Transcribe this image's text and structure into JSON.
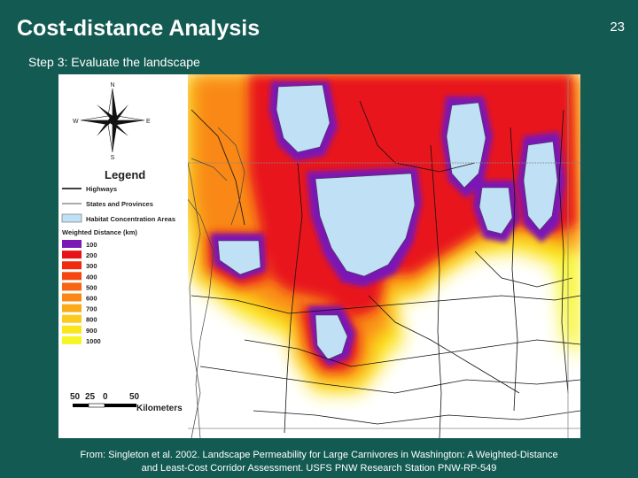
{
  "slide": {
    "title": "Cost-distance Analysis",
    "number": "23",
    "subtitle": "Step 3: Evaluate the landscape",
    "caption_line1": "From: Singleton et al. 2002. Landscape Permeability for Large Carnivores in Washington: A Weighted-Distance",
    "caption_line2": "and Least-Cost Corridor Assessment. USFS PNW Research Station PNW-RP-549"
  },
  "map": {
    "compass": {
      "n": "N",
      "s": "S",
      "e": "E",
      "w": "W"
    },
    "legend": {
      "title": "Legend",
      "items": [
        {
          "label": "Highways",
          "kind": "line",
          "color": "#000000"
        },
        {
          "label": "States and Provinces",
          "kind": "line",
          "color": "#777777"
        },
        {
          "label": "Habitat Concentration Areas",
          "kind": "box",
          "color": "#bfe0f5"
        }
      ],
      "distance_title": "Weighted Distance (km)",
      "distance_classes": [
        {
          "label": "100",
          "color": "#7a19b5"
        },
        {
          "label": "200",
          "color": "#e8131a"
        },
        {
          "label": "300",
          "color": "#f02a0f"
        },
        {
          "label": "400",
          "color": "#f5460f"
        },
        {
          "label": "500",
          "color": "#f76512"
        },
        {
          "label": "600",
          "color": "#f98816"
        },
        {
          "label": "700",
          "color": "#fbab1a"
        },
        {
          "label": "800",
          "color": "#fccb1f"
        },
        {
          "label": "900",
          "color": "#fbe51d"
        },
        {
          "label": "1000",
          "color": "#f7f526"
        }
      ]
    },
    "scale": {
      "ticks": [
        "50",
        "25",
        "0",
        "50"
      ],
      "unit": "Kilometers"
    },
    "colors": {
      "habitat": "#bfe0f5",
      "purple": "#7a19b5",
      "red": "#e8131a",
      "orange": "#f98816",
      "yellow": "#f7f526"
    }
  }
}
